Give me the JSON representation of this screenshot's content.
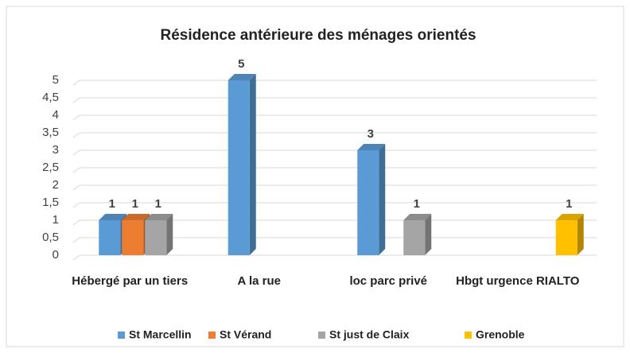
{
  "chart_data": {
    "type": "bar",
    "title": "Résidence antérieure des ménages orientés",
    "categories": [
      "Hébergé par un tiers",
      "A la rue",
      "loc parc privé",
      "Hbgt urgence RIALTO"
    ],
    "series": [
      {
        "name": "St Marcellin",
        "color": "#5b9bd5",
        "values": [
          1,
          5,
          3,
          null
        ]
      },
      {
        "name": "St Vérand",
        "color": "#ed7d31",
        "values": [
          1,
          null,
          null,
          null
        ]
      },
      {
        "name": "St just de Claix",
        "color": "#a5a5a5",
        "values": [
          1,
          null,
          1,
          null
        ]
      },
      {
        "name": "Grenoble",
        "color": "#ffc000",
        "values": [
          null,
          null,
          null,
          1
        ]
      }
    ],
    "ylim": [
      0,
      5
    ],
    "yticks": [
      0,
      {
        "value": 0.5,
        "label": "0,5"
      },
      1,
      {
        "value": 1.5,
        "label": "1,5"
      },
      2,
      {
        "value": 2.5,
        "label": "2,5"
      },
      3,
      {
        "value": 3.5,
        "label": "3,5"
      },
      4,
      {
        "value": 4.5,
        "label": "4,5"
      },
      5
    ],
    "grid": true,
    "legend": "bottom"
  }
}
